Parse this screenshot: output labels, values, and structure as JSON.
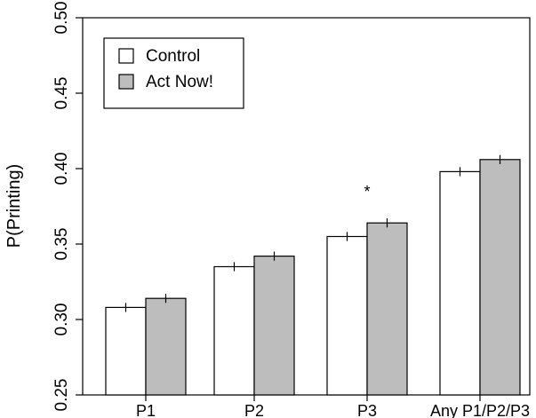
{
  "chart_data": {
    "type": "bar",
    "title": "",
    "xlabel": "",
    "ylabel": "P(Printing)",
    "ylim": [
      0.25,
      0.5
    ],
    "yticks": [
      "0.25",
      "0.30",
      "0.35",
      "0.40",
      "0.45",
      "0.50"
    ],
    "categories": [
      "P1",
      "P2",
      "P3",
      "Any P1/P2/P3"
    ],
    "series": [
      {
        "name": "Control",
        "color": "#ffffff",
        "values": [
          0.308,
          0.335,
          0.355,
          0.398
        ],
        "errors": [
          0.003,
          0.003,
          0.003,
          0.003
        ]
      },
      {
        "name": "Act Now!",
        "color": "#bdbdbd",
        "values": [
          0.314,
          0.342,
          0.364,
          0.406
        ],
        "errors": [
          0.003,
          0.003,
          0.003,
          0.003
        ]
      }
    ],
    "annotations": [
      {
        "category": "P3",
        "text": "*"
      }
    ],
    "legend_position": "top-left",
    "grid": false
  }
}
